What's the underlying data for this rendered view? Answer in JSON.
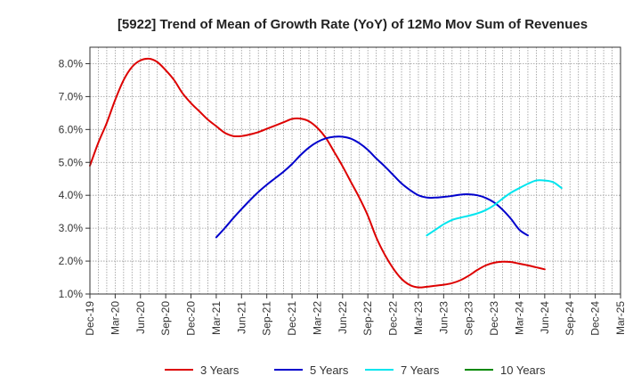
{
  "chart_data": {
    "type": "line",
    "title": "[5922]  Trend of Mean of Growth Rate (YoY) of 12Mo Mov Sum of Revenues",
    "xlabel": "",
    "ylabel": "",
    "ylim": [
      1.0,
      8.5
    ],
    "yticks": [
      1.0,
      2.0,
      3.0,
      4.0,
      5.0,
      6.0,
      7.0,
      8.0
    ],
    "ytick_labels": [
      "1.0%",
      "2.0%",
      "3.0%",
      "4.0%",
      "5.0%",
      "6.0%",
      "7.0%",
      "8.0%"
    ],
    "x_start": "Dec-19",
    "x_months": 63,
    "xtick_labels": [
      "Dec-19",
      "Mar-20",
      "Jun-20",
      "Sep-20",
      "Dec-20",
      "Mar-21",
      "Jun-21",
      "Sep-21",
      "Dec-21",
      "Mar-22",
      "Jun-22",
      "Sep-22",
      "Dec-22",
      "Mar-23",
      "Jun-23",
      "Sep-23",
      "Dec-23",
      "Mar-24",
      "Jun-24",
      "Sep-24",
      "Dec-24",
      "Mar-25"
    ],
    "grid": true,
    "legend_position": "bottom",
    "series": [
      {
        "name": "3 Years",
        "color": "#dd0000",
        "points": [
          [
            0,
            4.9
          ],
          [
            1,
            5.6
          ],
          [
            2,
            6.2
          ],
          [
            3,
            6.9
          ],
          [
            4,
            7.5
          ],
          [
            5,
            7.9
          ],
          [
            6,
            8.1
          ],
          [
            7,
            8.15
          ],
          [
            8,
            8.05
          ],
          [
            9,
            7.8
          ],
          [
            10,
            7.5
          ],
          [
            11,
            7.1
          ],
          [
            12,
            6.8
          ],
          [
            13,
            6.55
          ],
          [
            14,
            6.3
          ],
          [
            15,
            6.1
          ],
          [
            16,
            5.9
          ],
          [
            17,
            5.8
          ],
          [
            18,
            5.8
          ],
          [
            19,
            5.85
          ],
          [
            20,
            5.92
          ],
          [
            21,
            6.02
          ],
          [
            22,
            6.12
          ],
          [
            23,
            6.22
          ],
          [
            24,
            6.32
          ],
          [
            25,
            6.33
          ],
          [
            26,
            6.25
          ],
          [
            27,
            6.05
          ],
          [
            28,
            5.75
          ],
          [
            29,
            5.32
          ],
          [
            30,
            4.88
          ],
          [
            31,
            4.4
          ],
          [
            32,
            3.92
          ],
          [
            33,
            3.38
          ],
          [
            34,
            2.72
          ],
          [
            35,
            2.2
          ],
          [
            36,
            1.78
          ],
          [
            37,
            1.46
          ],
          [
            38,
            1.27
          ],
          [
            39,
            1.2
          ],
          [
            40,
            1.22
          ],
          [
            41,
            1.25
          ],
          [
            42,
            1.28
          ],
          [
            43,
            1.33
          ],
          [
            44,
            1.42
          ],
          [
            45,
            1.56
          ],
          [
            46,
            1.73
          ],
          [
            47,
            1.87
          ],
          [
            48,
            1.95
          ],
          [
            49,
            1.98
          ],
          [
            50,
            1.97
          ],
          [
            51,
            1.92
          ],
          [
            52,
            1.87
          ],
          [
            53,
            1.81
          ],
          [
            54,
            1.75
          ]
        ]
      },
      {
        "name": "5 Years",
        "color": "#0000cc",
        "points": [
          [
            15,
            2.72
          ],
          [
            16,
            3.0
          ],
          [
            17,
            3.3
          ],
          [
            18,
            3.58
          ],
          [
            19,
            3.85
          ],
          [
            20,
            4.1
          ],
          [
            21,
            4.32
          ],
          [
            22,
            4.52
          ],
          [
            23,
            4.72
          ],
          [
            24,
            4.95
          ],
          [
            25,
            5.22
          ],
          [
            26,
            5.45
          ],
          [
            27,
            5.62
          ],
          [
            28,
            5.73
          ],
          [
            29,
            5.78
          ],
          [
            30,
            5.78
          ],
          [
            31,
            5.72
          ],
          [
            32,
            5.58
          ],
          [
            33,
            5.38
          ],
          [
            34,
            5.12
          ],
          [
            35,
            4.88
          ],
          [
            36,
            4.62
          ],
          [
            37,
            4.36
          ],
          [
            38,
            4.16
          ],
          [
            39,
            4.0
          ],
          [
            40,
            3.93
          ],
          [
            41,
            3.93
          ],
          [
            42,
            3.95
          ],
          [
            43,
            3.98
          ],
          [
            44,
            4.02
          ],
          [
            45,
            4.03
          ],
          [
            46,
            4.0
          ],
          [
            47,
            3.92
          ],
          [
            48,
            3.78
          ],
          [
            49,
            3.56
          ],
          [
            50,
            3.28
          ],
          [
            51,
            2.95
          ],
          [
            52,
            2.78
          ]
        ]
      },
      {
        "name": "7 Years",
        "color": "#00e5ee",
        "points": [
          [
            40,
            2.78
          ],
          [
            41,
            2.95
          ],
          [
            42,
            3.12
          ],
          [
            43,
            3.25
          ],
          [
            44,
            3.32
          ],
          [
            45,
            3.38
          ],
          [
            46,
            3.45
          ],
          [
            47,
            3.55
          ],
          [
            48,
            3.7
          ],
          [
            49,
            3.9
          ],
          [
            50,
            4.08
          ],
          [
            51,
            4.22
          ],
          [
            52,
            4.35
          ],
          [
            53,
            4.45
          ],
          [
            54,
            4.45
          ],
          [
            55,
            4.4
          ],
          [
            56,
            4.22
          ]
        ]
      },
      {
        "name": "10 Years",
        "color": "#008800",
        "points": []
      }
    ]
  }
}
